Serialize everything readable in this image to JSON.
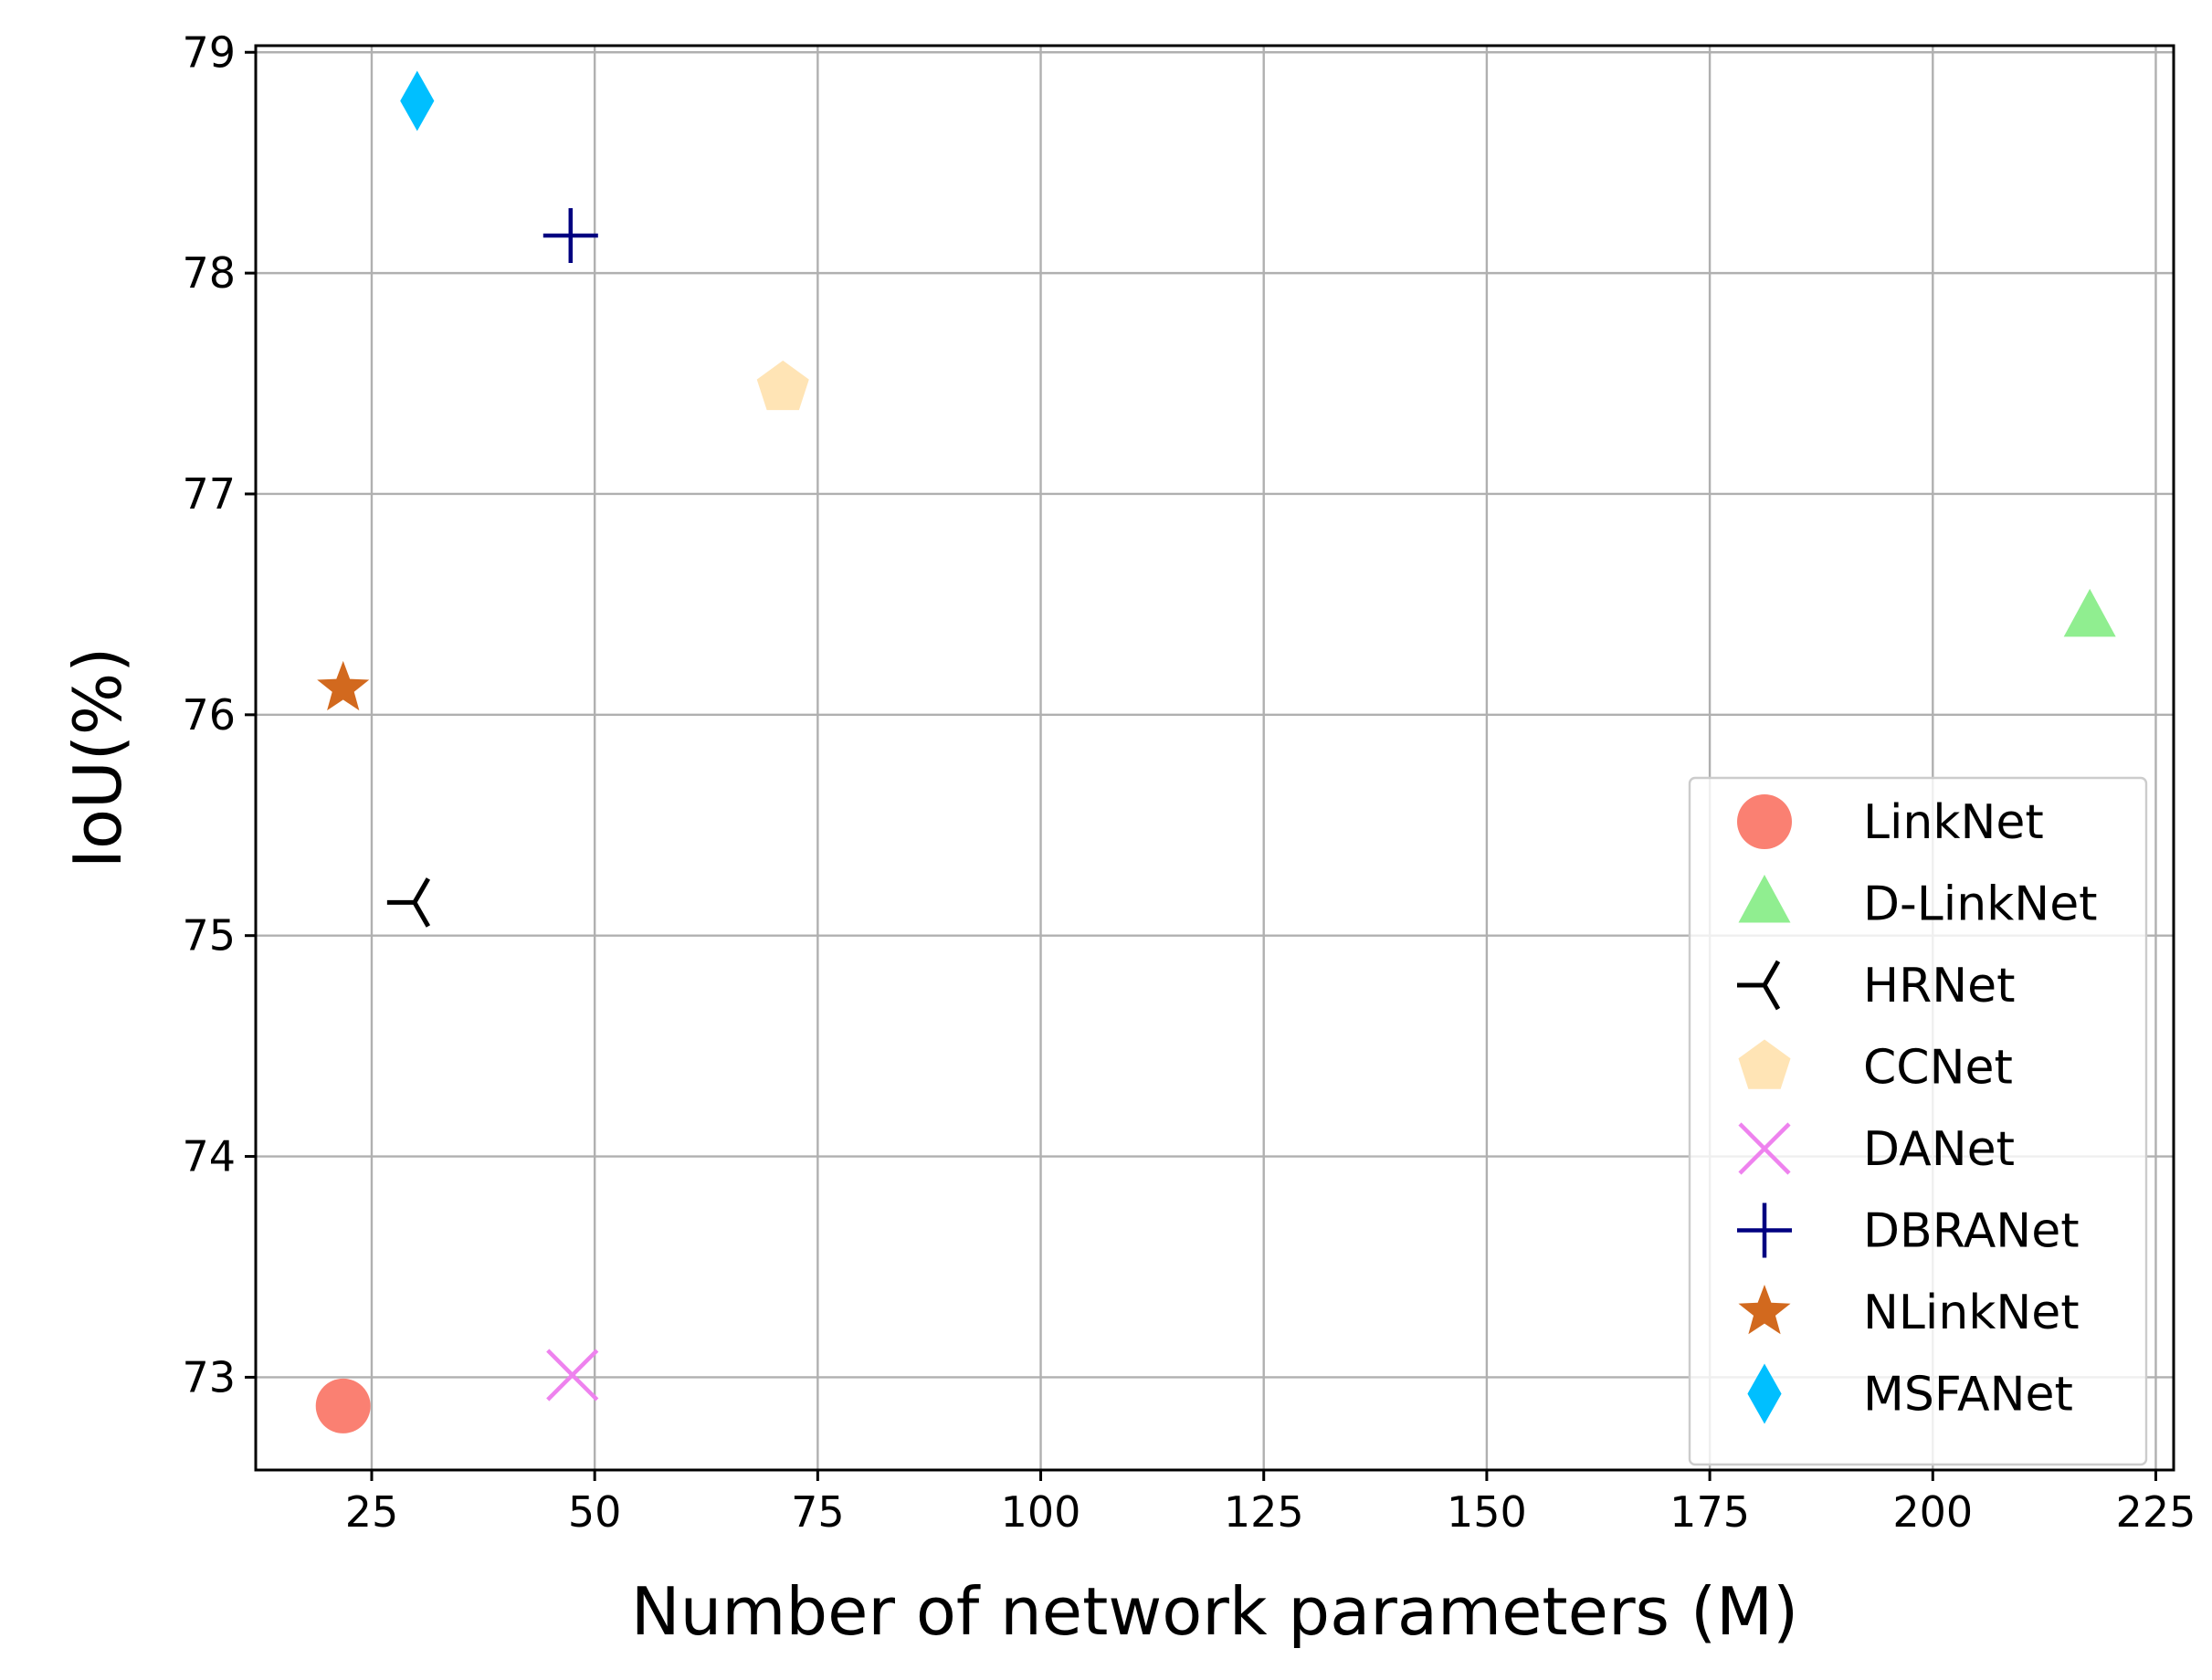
{
  "chart_data": {
    "type": "scatter",
    "title": "",
    "xlabel": "Number of network parameters (M)",
    "ylabel": "IoU(%)",
    "xlim": [
      12,
      227
    ],
    "ylim": [
      72.58,
      79.03
    ],
    "xticks": [
      25,
      50,
      75,
      100,
      125,
      150,
      175,
      200,
      225
    ],
    "yticks": [
      73,
      74,
      75,
      76,
      77,
      78,
      79
    ],
    "grid": true,
    "legend_position": "lower right",
    "series": [
      {
        "name": "LinkNet",
        "marker": "circle",
        "color": "#fa8072",
        "points": [
          {
            "x": 21.8,
            "y": 72.87
          }
        ]
      },
      {
        "name": "D-LinkNet",
        "marker": "triangle",
        "color": "#90ee90",
        "points": [
          {
            "x": 217.6,
            "y": 76.44
          }
        ]
      },
      {
        "name": "HRNet",
        "marker": "tri-left",
        "color": "#000000",
        "points": [
          {
            "x": 29.8,
            "y": 75.15
          }
        ]
      },
      {
        "name": "CCNet",
        "marker": "pentagon",
        "color": "#ffe4b5",
        "points": [
          {
            "x": 71.1,
            "y": 77.48
          }
        ]
      },
      {
        "name": "DANet",
        "marker": "x",
        "color": "#ee82ee",
        "points": [
          {
            "x": 47.5,
            "y": 73.01
          }
        ]
      },
      {
        "name": "DBRANet",
        "marker": "plus",
        "color": "#000080",
        "points": [
          {
            "x": 47.3,
            "y": 78.17
          }
        ]
      },
      {
        "name": "NLinkNet",
        "marker": "star",
        "color": "#d2691e",
        "points": [
          {
            "x": 21.8,
            "y": 76.12
          }
        ]
      },
      {
        "name": "MSFANet",
        "marker": "thin-diamond",
        "color": "#00bfff",
        "points": [
          {
            "x": 30.1,
            "y": 78.78
          }
        ]
      }
    ]
  }
}
